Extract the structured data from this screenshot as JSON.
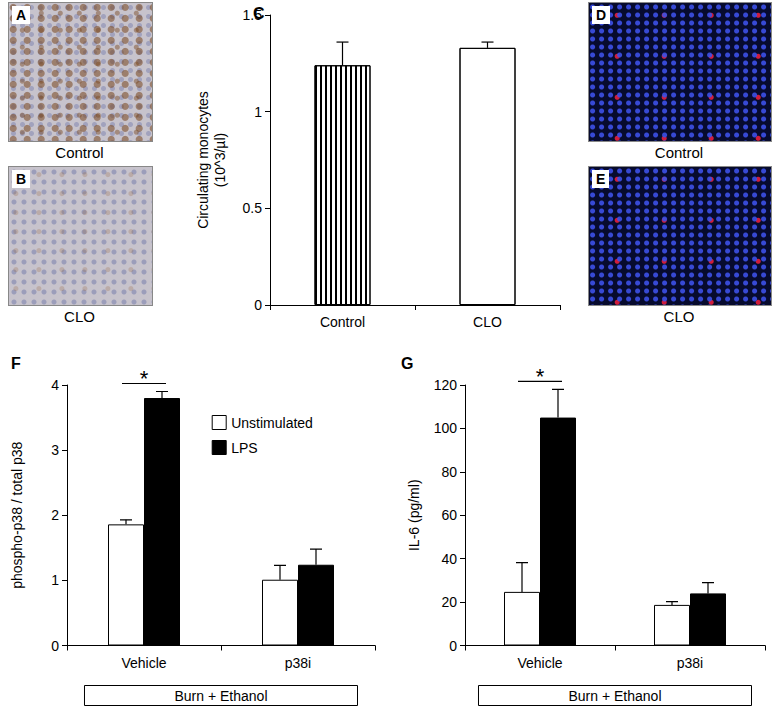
{
  "image_panels": [
    {
      "label": "A",
      "caption": "Control"
    },
    {
      "label": "B",
      "caption": "CLO"
    },
    {
      "label": "D",
      "caption": "Control"
    },
    {
      "label": "E",
      "caption": "CLO"
    }
  ],
  "chart_data": [
    {
      "type": "bar",
      "title": "C",
      "categories": [
        "Control",
        "CLO"
      ],
      "values": [
        1.24,
        1.33
      ],
      "errors": [
        0.12,
        0.03
      ],
      "colors": [
        "#ffffff",
        "#ffffff"
      ],
      "ylabel": "Circulating monocytes\n(10^3/µl)",
      "ylim": [
        0,
        1.5
      ],
      "yticks": [
        0,
        0.5,
        1,
        1.5
      ],
      "grid": false
    },
    {
      "type": "bar",
      "title": "F",
      "categories": [
        "Vehicle",
        "p38i"
      ],
      "xlabel": "Burn + Ethanol",
      "series": [
        {
          "name": "Unstimulated",
          "color": "#ffffff",
          "values": [
            1.86,
            1.01
          ],
          "errors": [
            0.07,
            0.22
          ]
        },
        {
          "name": "LPS",
          "color": "#000000",
          "values": [
            3.8,
            1.24
          ],
          "errors": [
            0.1,
            0.24
          ]
        }
      ],
      "ylabel": "phospho-p38 / total p38",
      "ylim": [
        0,
        4
      ],
      "yticks": [
        0,
        1,
        2,
        3,
        4
      ],
      "grid": false,
      "legend": "top",
      "annotations": [
        {
          "text": "*",
          "category": "Vehicle"
        }
      ]
    },
    {
      "type": "bar",
      "title": "G",
      "categories": [
        "Vehicle",
        "p38i"
      ],
      "xlabel": "Burn + Ethanol",
      "series": [
        {
          "name": "Unstimulated",
          "color": "#ffffff",
          "values": [
            24.7,
            18.7
          ],
          "errors": [
            13.5,
            1.5
          ]
        },
        {
          "name": "LPS",
          "color": "#000000",
          "values": [
            105,
            24
          ],
          "errors": [
            13,
            5
          ]
        }
      ],
      "ylabel": "IL-6 (pg/ml)",
      "ylim": [
        0,
        120
      ],
      "yticks": [
        0,
        20,
        40,
        60,
        80,
        100,
        120
      ],
      "grid": false,
      "annotations": [
        {
          "text": "*",
          "category": "Vehicle"
        }
      ]
    }
  ]
}
